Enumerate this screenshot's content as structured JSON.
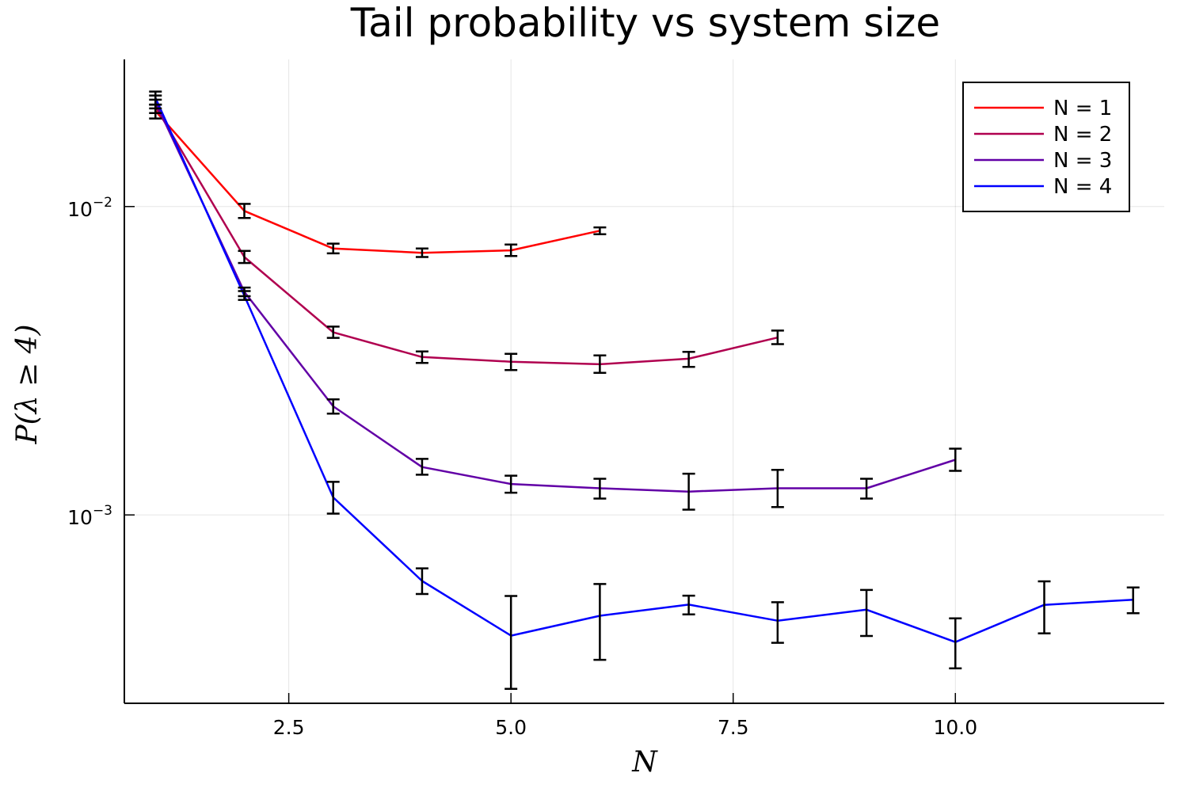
{
  "chart_data": {
    "type": "line",
    "title": "Tail probability vs system size",
    "xlabel": "N",
    "ylabel": "P(λ ≥ 4)",
    "xlim": [
      0.65,
      12.35
    ],
    "ylim": [
      0.000245,
      0.03
    ],
    "yscale": "log",
    "grid": true,
    "legend_position": "top-right",
    "xticks": [
      {
        "value": 2.5,
        "label": "2.5"
      },
      {
        "value": 5.0,
        "label": "5.0"
      },
      {
        "value": 7.5,
        "label": "7.5"
      },
      {
        "value": 10.0,
        "label": "10.0"
      }
    ],
    "yticks": [
      {
        "value": 0.01,
        "base": "10",
        "exp": "−2"
      },
      {
        "value": 0.001,
        "base": "10",
        "exp": "−3"
      }
    ],
    "series": [
      {
        "name": "N = 1",
        "color": "#ff0000",
        "points": [
          {
            "x": 1,
            "y": 0.0204,
            "lo": 0.0193,
            "hi": 0.0214
          },
          {
            "x": 2,
            "y": 0.00968,
            "lo": 0.00918,
            "hi": 0.0102
          },
          {
            "x": 3,
            "y": 0.00731,
            "lo": 0.00705,
            "hi": 0.00758
          },
          {
            "x": 4,
            "y": 0.00708,
            "lo": 0.00686,
            "hi": 0.00731
          },
          {
            "x": 5,
            "y": 0.00721,
            "lo": 0.00691,
            "hi": 0.00753
          },
          {
            "x": 6,
            "y": 0.00835,
            "lo": 0.00813,
            "hi": 0.00856
          }
        ]
      },
      {
        "name": "N = 2",
        "color": "#b0004f",
        "points": [
          {
            "x": 1,
            "y": 0.0211,
            "lo": 0.0201,
            "hi": 0.0222
          },
          {
            "x": 2,
            "y": 0.00686,
            "lo": 0.00656,
            "hi": 0.00718
          },
          {
            "x": 3,
            "y": 0.00391,
            "lo": 0.00375,
            "hi": 0.00408
          },
          {
            "x": 4,
            "y": 0.00325,
            "lo": 0.00311,
            "hi": 0.00339
          },
          {
            "x": 5,
            "y": 0.00314,
            "lo": 0.00295,
            "hi": 0.00333
          },
          {
            "x": 6,
            "y": 0.00308,
            "lo": 0.00289,
            "hi": 0.00329
          },
          {
            "x": 7,
            "y": 0.00321,
            "lo": 0.00302,
            "hi": 0.00338
          },
          {
            "x": 8,
            "y": 0.00376,
            "lo": 0.00358,
            "hi": 0.00396
          }
        ]
      },
      {
        "name": "N = 3",
        "color": "#6200a6",
        "points": [
          {
            "x": 1,
            "y": 0.0218,
            "lo": 0.0208,
            "hi": 0.0229
          },
          {
            "x": 2,
            "y": 0.00529,
            "lo": 0.00512,
            "hi": 0.00546
          },
          {
            "x": 3,
            "y": 0.00225,
            "lo": 0.00213,
            "hi": 0.00237
          },
          {
            "x": 4,
            "y": 0.00143,
            "lo": 0.00135,
            "hi": 0.00152
          },
          {
            "x": 5,
            "y": 0.00126,
            "lo": 0.00118,
            "hi": 0.00134
          },
          {
            "x": 6,
            "y": 0.00122,
            "lo": 0.00113,
            "hi": 0.00131
          },
          {
            "x": 7,
            "y": 0.00119,
            "lo": 0.00104,
            "hi": 0.00136
          },
          {
            "x": 8,
            "y": 0.00122,
            "lo": 0.00106,
            "hi": 0.0014
          },
          {
            "x": 9,
            "y": 0.00122,
            "lo": 0.00113,
            "hi": 0.00131
          },
          {
            "x": 10,
            "y": 0.00151,
            "lo": 0.00139,
            "hi": 0.00164
          }
        ]
      },
      {
        "name": "N = 4",
        "color": "#0000ff",
        "points": [
          {
            "x": 1,
            "y": 0.0225,
            "lo": 0.0214,
            "hi": 0.0236
          },
          {
            "x": 2,
            "y": 0.00514,
            "lo": 0.00498,
            "hi": 0.00532
          },
          {
            "x": 3,
            "y": 0.00114,
            "lo": 0.00101,
            "hi": 0.00128
          },
          {
            "x": 4,
            "y": 0.000611,
            "lo": 0.000554,
            "hi": 0.000671
          },
          {
            "x": 5,
            "y": 0.000406,
            "lo": 0.000273,
            "hi": 0.000546
          },
          {
            "x": 6,
            "y": 0.000471,
            "lo": 0.000339,
            "hi": 0.000597
          },
          {
            "x": 7,
            "y": 0.000512,
            "lo": 0.000476,
            "hi": 0.000547
          },
          {
            "x": 8,
            "y": 0.000454,
            "lo": 0.000385,
            "hi": 0.000521
          },
          {
            "x": 9,
            "y": 0.000493,
            "lo": 0.000405,
            "hi": 0.000571
          },
          {
            "x": 10,
            "y": 0.000387,
            "lo": 0.000318,
            "hi": 0.000462
          },
          {
            "x": 11,
            "y": 0.000511,
            "lo": 0.000413,
            "hi": 0.000609
          },
          {
            "x": 12,
            "y": 0.000531,
            "lo": 0.00048,
            "hi": 0.000582
          }
        ]
      }
    ]
  }
}
